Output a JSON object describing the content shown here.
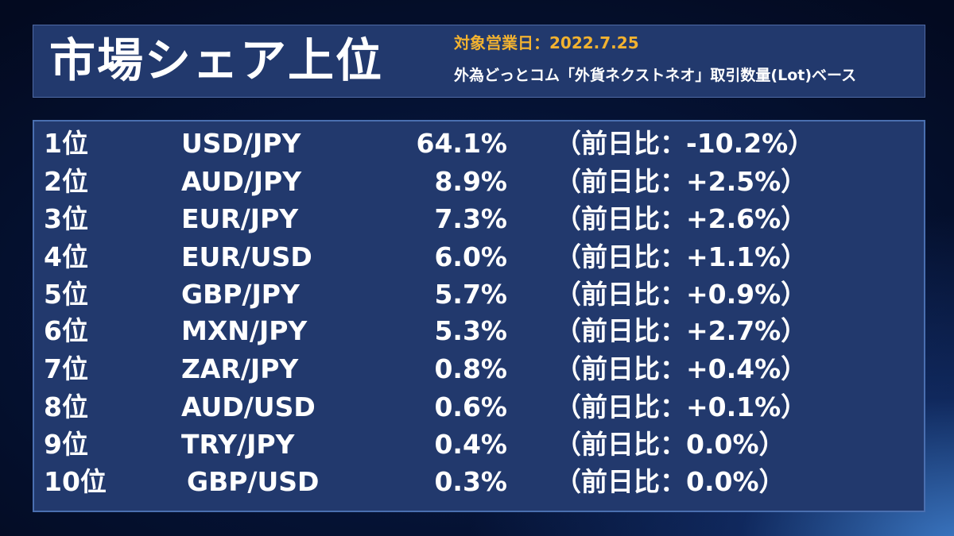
{
  "header": {
    "title": "市場シェア上位",
    "target_date": "対象営業日：2022.7.25",
    "basis": "外為どっとコム「外貨ネクストネオ」取引数量(Lot)ベース"
  },
  "rankings": [
    {
      "rank": "1位",
      "pair": "USD/JPY",
      "share": "64.1%",
      "change": "（前日比：-10.2%）"
    },
    {
      "rank": "2位",
      "pair": "AUD/JPY",
      "share": "8.9%",
      "change": "（前日比：+2.5%）"
    },
    {
      "rank": "3位",
      "pair": "EUR/JPY",
      "share": "7.3%",
      "change": "（前日比：+2.6%）"
    },
    {
      "rank": "4位",
      "pair": "EUR/USD",
      "share": "6.0%",
      "change": "（前日比：+1.1%）"
    },
    {
      "rank": "5位",
      "pair": "GBP/JPY",
      "share": "5.7%",
      "change": "（前日比：+0.9%）"
    },
    {
      "rank": "6位",
      "pair": "MXN/JPY",
      "share": "5.3%",
      "change": "（前日比：+2.7%）"
    },
    {
      "rank": "7位",
      "pair": "ZAR/JPY",
      "share": "0.8%",
      "change": "（前日比：+0.4%）"
    },
    {
      "rank": "8位",
      "pair": "AUD/USD",
      "share": "0.6%",
      "change": "（前日比：+0.1%）"
    },
    {
      "rank": "9位",
      "pair": "TRY/JPY",
      "share": "0.4%",
      "change": "（前日比：0.0%）"
    },
    {
      "rank": "10位",
      "pair": "GBP/USD",
      "share": "0.3%",
      "change": "（前日比：0.0%）"
    }
  ],
  "colors": {
    "panel": "#22396d",
    "accent": "#f2b230",
    "text": "#ffffff"
  }
}
